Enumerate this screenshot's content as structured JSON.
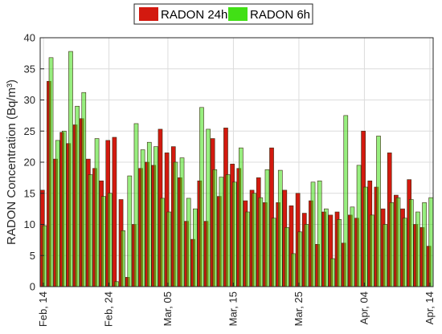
{
  "chart_data": {
    "type": "bar",
    "ylabel": "RADON Concentration (Bq/m³)",
    "xlabel": "",
    "ylim": [
      0,
      40
    ],
    "yticks": [
      0,
      5,
      10,
      15,
      20,
      25,
      30,
      35,
      40
    ],
    "grid": true,
    "legend_position": "top-center",
    "x_start_date": "Feb 14",
    "xticks": [
      {
        "label": "Feb, 14",
        "index": 0
      },
      {
        "label": "Feb, 24",
        "index": 10
      },
      {
        "label": "Mar, 05",
        "index": 19
      },
      {
        "label": "Mar, 15",
        "index": 29
      },
      {
        "label": "Mar, 25",
        "index": 39
      },
      {
        "label": "Apr, 04",
        "index": 49
      },
      {
        "label": "Apr, 14",
        "index": 59
      }
    ],
    "categories_count": 60,
    "series": [
      {
        "name": "RADON 24h",
        "color": "#d3190f",
        "values": [
          15.5,
          33.0,
          20.5,
          24.8,
          23.0,
          26.0,
          27.0,
          20.5,
          19.0,
          17.0,
          23.5,
          24.0,
          14.0,
          1.5,
          10.0,
          19.0,
          20.0,
          19.5,
          25.3,
          21.5,
          22.5,
          17.5,
          10.5,
          7.6,
          17.0,
          10.5,
          23.8,
          14.5,
          25.5,
          19.7,
          19.0,
          13.8,
          15.5,
          17.5,
          13.5,
          22.3,
          13.5,
          15.5,
          13.0,
          15.0,
          11.8,
          13.8,
          6.8,
          12.0,
          11.5,
          12.0,
          7.0,
          11.5,
          11.0,
          25.0,
          17.0,
          16.0,
          12.5,
          21.5,
          14.7,
          12.5,
          17.2,
          10.0,
          9.5,
          6.5
        ]
      },
      {
        "name": "RADON 6h",
        "color": "#41e015",
        "values": [
          9.8,
          36.8,
          23.5,
          25.0,
          37.8,
          29.0,
          31.2,
          18.0,
          23.8,
          14.5,
          15.0,
          0.8,
          9.0,
          17.8,
          26.2,
          22.0,
          23.2,
          22.5,
          14.2,
          12.0,
          20.0,
          20.7,
          14.2,
          12.5,
          28.8,
          25.3,
          18.8,
          17.6,
          18.0,
          16.8,
          22.3,
          12.0,
          15.0,
          14.3,
          18.8,
          11.0,
          18.7,
          9.5,
          5.3,
          8.8,
          10.0,
          16.8,
          17.0,
          12.5,
          4.5,
          10.8,
          27.5,
          12.8,
          19.5,
          16.0,
          11.5,
          24.2,
          10.0,
          13.5,
          14.3,
          11.0,
          14.0,
          12.0,
          13.5,
          14.3
        ]
      }
    ]
  }
}
